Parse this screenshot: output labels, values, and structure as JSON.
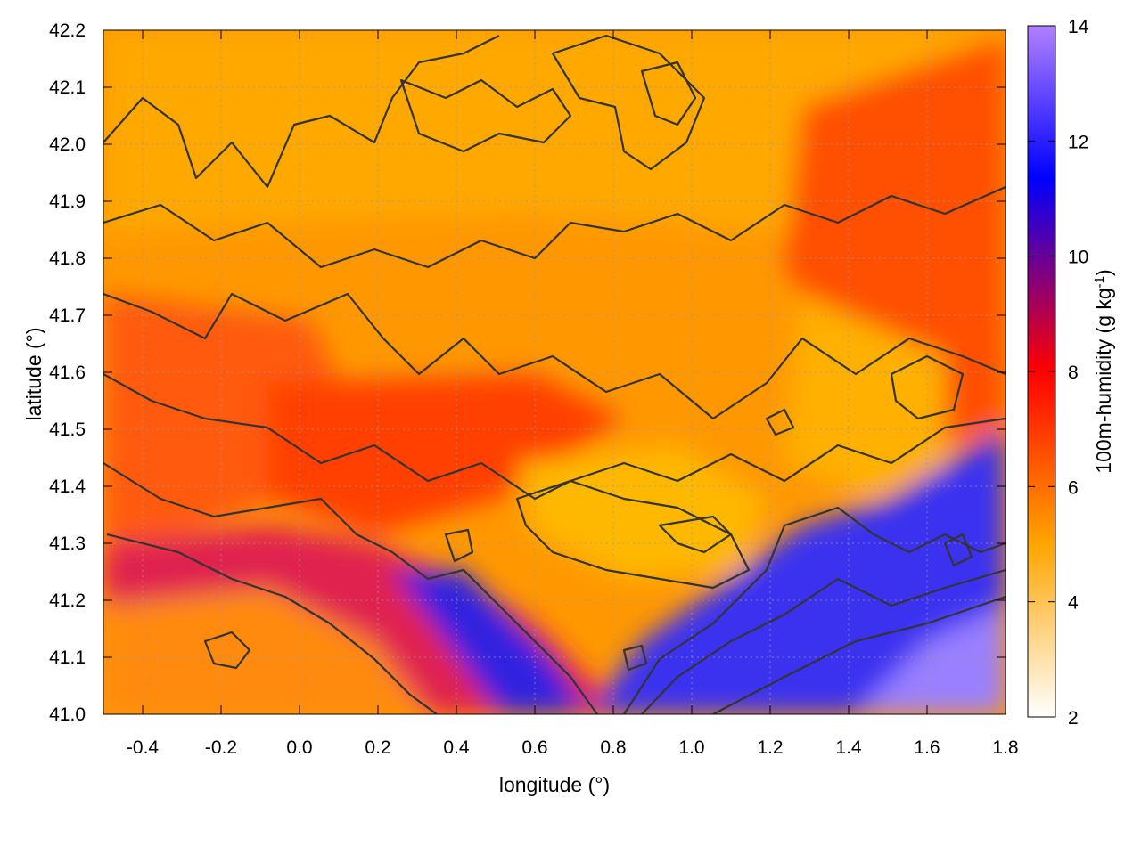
{
  "chart_data": {
    "type": "heatmap",
    "title": "",
    "xlabel": "longitude (°)",
    "ylabel": "latitude (°)",
    "xlim": [
      -0.5,
      1.8
    ],
    "ylim": [
      41.0,
      42.2
    ],
    "x_ticks": [
      "-0.4",
      "-0.2",
      "0.0",
      "0.2",
      "0.4",
      "0.6",
      "0.8",
      "1.0",
      "1.2",
      "1.4",
      "1.6",
      "1.8"
    ],
    "y_ticks": [
      "41.0",
      "41.1",
      "41.2",
      "41.3",
      "41.4",
      "41.5",
      "41.6",
      "41.7",
      "41.8",
      "41.9",
      "42.0",
      "42.1",
      "42.2"
    ],
    "grid": true,
    "colorbar": {
      "label_main": "100m-humidity (g kg",
      "label_sup": "-1",
      "label_end": ")",
      "range": [
        2,
        14
      ],
      "ticks": [
        "2",
        "4",
        "6",
        "8",
        "10",
        "12",
        "14"
      ],
      "colors": [
        "#ffffff",
        "#ffa500",
        "#ff0000",
        "#0000ff",
        "#b080ff"
      ]
    },
    "contour_color": "#333333",
    "regions": {
      "inland_north": 5.0,
      "inland_west": 7.0,
      "coastal_band": 9.5,
      "sea": 11.5
    }
  }
}
